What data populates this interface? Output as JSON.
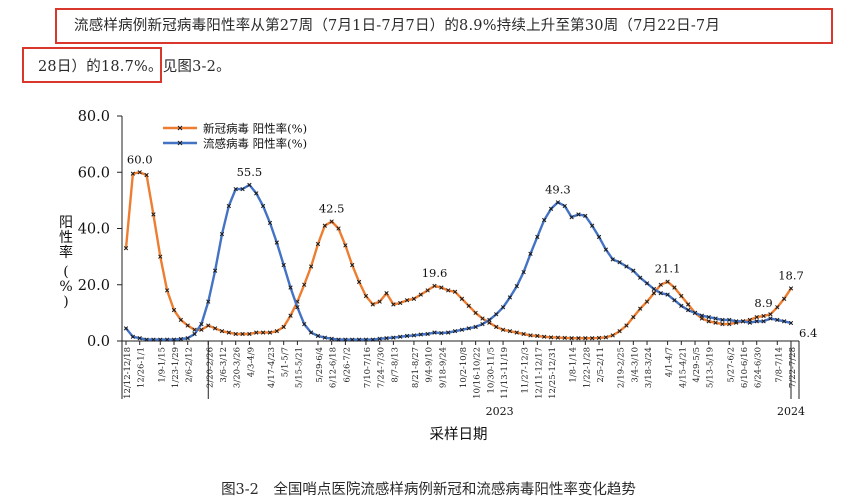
{
  "paragraph": {
    "line1": "流感样病例新冠病毒阳性率从第27周（7月1日-7月7日）的8.9%持续上升至第30周（7月22日-7月",
    "line2_highlight": "28日）的18.7%。",
    "line2_rest": "见图3-2。"
  },
  "caption": "图3-2　全国哨点医院流感样病例新冠和流感病毒阳性率变化趋势",
  "colors": {
    "covid": "#ED7D31",
    "flu": "#4472C4",
    "highlight": "#d9372b",
    "marker": "#1a1a1a"
  },
  "chart_data": {
    "type": "line",
    "ylabel": "阳性率(%)",
    "xlabel": "采样日期",
    "ylim": [
      0,
      80
    ],
    "yticks": [
      "0.0",
      "20.0",
      "40.0",
      "60.0",
      "80.0"
    ],
    "grid": false,
    "legend_position": "top-left",
    "year_labels": [
      {
        "label": "2023",
        "from": 5,
        "to": 56
      },
      {
        "label": "2024",
        "from": 56,
        "to": 84
      }
    ],
    "x_tick_labels": [
      "12/12-12/18",
      "12/26-1/1",
      "1/9-1/15",
      "1/23-1/29",
      "2/6-2/12",
      "2/20-2/26",
      "3/6-3/12",
      "3/20-3/26",
      "4/3-4/9",
      "4/17-4/23",
      "5/1-5/7",
      "5/15-5/21",
      "5/29-6/4",
      "6/12-6/18",
      "6/26-7/2",
      "7/10-7/16",
      "7/24-7/30",
      "8/7-8/13",
      "8/21-8/27",
      "9/4-9/10",
      "9/18-9/24",
      "10/2-10/8",
      "10/16-10/22",
      "10/30-11/5",
      "11/13-11/19",
      "11/27-12/3",
      "12/11-12/17",
      "12/25-12/31",
      "1/8-1/14",
      "1/22-1/28",
      "2/5-2/11",
      "2/19-2/25",
      "3/4-3/10",
      "3/18-3/24",
      "4/1-4/7",
      "4/15-4/21",
      "4/29-5/5",
      "5/13-5/19",
      "5/27-6/2",
      "6/10-6/16",
      "6/24-6/30",
      "7/8-7/14",
      "7/22-7/28"
    ],
    "series": [
      {
        "name": "新冠病毒 阳性率(%)",
        "color": "#ED7D31",
        "values": [
          33.0,
          59.5,
          60.0,
          59.0,
          45.0,
          30.0,
          18.0,
          11.0,
          7.5,
          5.5,
          4.0,
          4.0,
          5.5,
          4.5,
          3.5,
          3.0,
          2.5,
          2.5,
          2.5,
          3.0,
          3.0,
          3.0,
          3.5,
          5.0,
          9.0,
          14.0,
          20.0,
          26.5,
          34.5,
          41.0,
          42.5,
          40.0,
          34.0,
          27.0,
          21.0,
          16.0,
          13.0,
          14.0,
          17.0,
          13.0,
          13.5,
          14.5,
          15.0,
          16.5,
          18.0,
          19.6,
          19.0,
          18.0,
          17.5,
          15.0,
          12.5,
          10.0,
          8.0,
          6.5,
          5.0,
          4.0,
          3.5,
          3.0,
          2.5,
          2.0,
          1.8,
          1.5,
          1.3,
          1.2,
          1.1,
          1.0,
          1.0,
          1.0,
          1.0,
          1.1,
          1.3,
          2.0,
          3.5,
          5.5,
          8.5,
          11.5,
          14.0,
          17.0,
          20.0,
          21.1,
          19.0,
          16.0,
          13.0,
          10.0,
          8.0,
          7.0,
          6.5,
          6.0,
          6.0,
          6.5,
          7.0,
          7.5,
          8.5,
          8.9,
          9.5,
          12.0,
          15.0,
          18.7
        ]
      },
      {
        "name": "流感病毒 阳性率(%)",
        "color": "#4472C4",
        "values": [
          4.5,
          1.5,
          1.0,
          0.5,
          0.5,
          0.5,
          0.5,
          0.5,
          0.7,
          1.0,
          2.5,
          6.0,
          14.0,
          25.0,
          38.0,
          48.0,
          54.0,
          54.0,
          55.5,
          52.5,
          48.0,
          42.0,
          35.0,
          27.0,
          19.0,
          12.0,
          6.0,
          3.0,
          1.8,
          1.2,
          0.8,
          0.5,
          0.5,
          0.5,
          0.5,
          0.5,
          0.5,
          0.8,
          1.0,
          1.2,
          1.5,
          1.8,
          2.0,
          2.3,
          2.5,
          3.0,
          2.8,
          3.0,
          3.5,
          4.0,
          4.5,
          5.0,
          6.0,
          7.5,
          9.5,
          12.0,
          15.5,
          19.5,
          24.5,
          31.0,
          37.0,
          43.0,
          47.0,
          49.3,
          48.0,
          44.0,
          45.0,
          44.5,
          41.0,
          37.0,
          32.5,
          29.0,
          28.0,
          26.5,
          25.0,
          22.5,
          20.5,
          18.5,
          17.0,
          16.5,
          14.5,
          12.5,
          11.0,
          10.0,
          9.0,
          8.5,
          8.0,
          7.5,
          7.5,
          7.0,
          7.0,
          6.5,
          7.0,
          7.0,
          8.0,
          7.5,
          7.0,
          6.4
        ]
      }
    ],
    "data_labels": [
      {
        "series": 0,
        "index": 2,
        "text": "60.0"
      },
      {
        "series": 1,
        "index": 18,
        "text": "55.5"
      },
      {
        "series": 0,
        "index": 30,
        "text": "42.5"
      },
      {
        "series": 0,
        "index": 45,
        "text": "19.6"
      },
      {
        "series": 1,
        "index": 63,
        "text": "49.3"
      },
      {
        "series": 0,
        "index": 79,
        "text": "21.1"
      },
      {
        "series": 0,
        "index": 93,
        "text": "8.9"
      },
      {
        "series": 0,
        "index": 97,
        "text": "18.7"
      },
      {
        "series": 1,
        "index": 97,
        "text": "6.4"
      }
    ]
  }
}
